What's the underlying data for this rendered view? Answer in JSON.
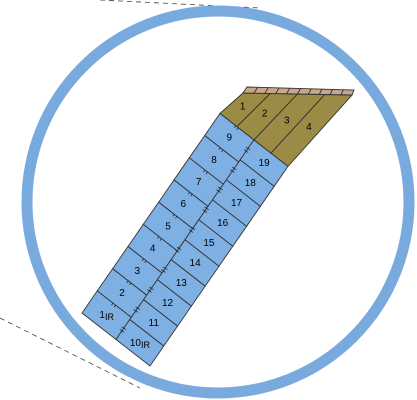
{
  "colors": {
    "ring": "#79aade",
    "background": "#ffffff",
    "cell_blue": "#7fb0e4",
    "cell_olive": "#9b8b44",
    "cell_tan": "#c8a68a",
    "grid_line": "#333333"
  },
  "columns": {
    "left": {
      "cells": [
        {
          "label": "1",
          "sub": "IR",
          "fill": "blue"
        },
        {
          "label": "2",
          "sub": "",
          "fill": "blue"
        },
        {
          "label": "3",
          "sub": "",
          "fill": "blue"
        },
        {
          "label": "4",
          "sub": "",
          "fill": "blue"
        },
        {
          "label": "5",
          "sub": "",
          "fill": "blue"
        },
        {
          "label": "6",
          "sub": "",
          "fill": "blue"
        },
        {
          "label": "7",
          "sub": "",
          "fill": "blue"
        },
        {
          "label": "8",
          "sub": "",
          "fill": "blue"
        },
        {
          "label": "9",
          "sub": "",
          "fill": "blue"
        }
      ]
    },
    "right": {
      "cells": [
        {
          "label": "10",
          "sub": "IR",
          "fill": "blue"
        },
        {
          "label": "11",
          "sub": "",
          "fill": "blue"
        },
        {
          "label": "12",
          "sub": "",
          "fill": "blue"
        },
        {
          "label": "13",
          "sub": "",
          "fill": "blue"
        },
        {
          "label": "14",
          "sub": "",
          "fill": "blue"
        },
        {
          "label": "15",
          "sub": "",
          "fill": "blue"
        },
        {
          "label": "16",
          "sub": "",
          "fill": "blue"
        },
        {
          "label": "17",
          "sub": "",
          "fill": "blue"
        },
        {
          "label": "18",
          "sub": "",
          "fill": "blue"
        },
        {
          "label": "19",
          "sub": "",
          "fill": "blue"
        }
      ]
    }
  },
  "top_cells": [
    {
      "label": "1",
      "fill": "olive"
    },
    {
      "label": "2",
      "fill": "olive"
    },
    {
      "label": "3",
      "fill": "olive"
    },
    {
      "label": "4",
      "fill": "olive"
    }
  ]
}
